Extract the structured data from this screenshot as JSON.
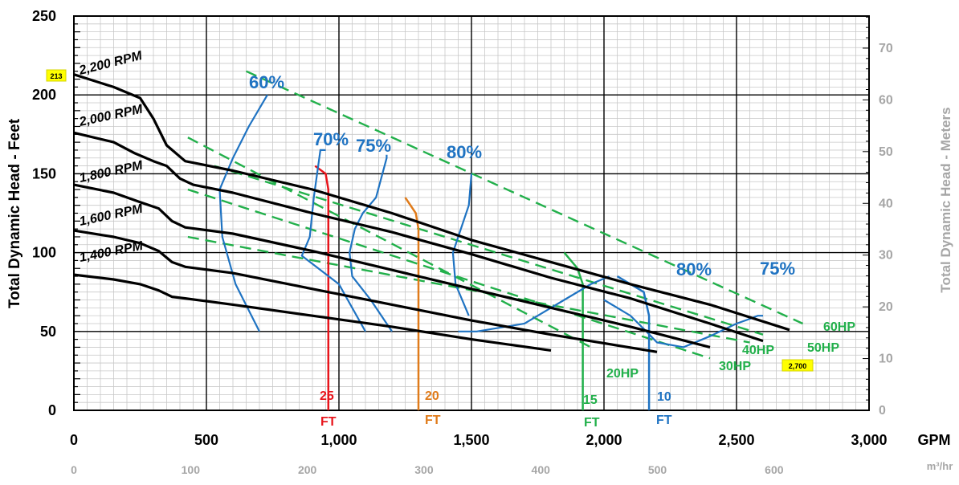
{
  "chart_data": {
    "type": "line",
    "xlabel": "GPM",
    "x2label": "m³/hr",
    "ylabel": "Total Dynamic Head - Feet",
    "y2label": "Total Dynamic Head - Meters",
    "xlim": [
      0,
      3000
    ],
    "ylim": [
      0,
      250
    ],
    "x_ticks": [
      "0",
      "500",
      "1,000",
      "1,500",
      "2,000",
      "2,500",
      "3,000"
    ],
    "y_ticks": [
      "0",
      "50",
      "100",
      "150",
      "200",
      "250"
    ],
    "x2_ticks": [
      "0",
      "100",
      "200",
      "300",
      "400",
      "500",
      "600"
    ],
    "y2_ticks": [
      "0",
      "10",
      "20",
      "30",
      "40",
      "50",
      "60",
      "70"
    ],
    "badges": {
      "shutoff_head": "213",
      "max_flow": "2,700"
    },
    "colors": {
      "rpm": "#000000",
      "efficiency": "#1f73c2",
      "horsepower": "#22b04b",
      "npsh_25": "#e8151c",
      "npsh_20": "#e07b1a",
      "npsh_15": "#22b04b",
      "npsh_10": "#1f73c2",
      "badge": "#ffff00",
      "grid": "#000000"
    },
    "rpm_curves": [
      {
        "name": "2,200 RPM",
        "points": [
          [
            0,
            213
          ],
          [
            150,
            205
          ],
          [
            250,
            198
          ],
          [
            300,
            185
          ],
          [
            350,
            168
          ],
          [
            420,
            158
          ],
          [
            600,
            152
          ],
          [
            900,
            140
          ],
          [
            1200,
            125
          ],
          [
            1500,
            108
          ],
          [
            1800,
            94
          ],
          [
            2100,
            80
          ],
          [
            2400,
            67
          ],
          [
            2700,
            51
          ]
        ]
      },
      {
        "name": "2,000 RPM",
        "points": [
          [
            0,
            176
          ],
          [
            150,
            170
          ],
          [
            230,
            163
          ],
          [
            300,
            158
          ],
          [
            350,
            155
          ],
          [
            400,
            147
          ],
          [
            450,
            143
          ],
          [
            600,
            138
          ],
          [
            900,
            125
          ],
          [
            1200,
            113
          ],
          [
            1500,
            99
          ],
          [
            1800,
            84
          ],
          [
            2100,
            71
          ],
          [
            2400,
            55
          ],
          [
            2600,
            44
          ]
        ]
      },
      {
        "name": "1,800 RPM",
        "points": [
          [
            0,
            143
          ],
          [
            150,
            138
          ],
          [
            250,
            132
          ],
          [
            320,
            128
          ],
          [
            370,
            120
          ],
          [
            420,
            116
          ],
          [
            600,
            112
          ],
          [
            900,
            101
          ],
          [
            1200,
            89
          ],
          [
            1500,
            77
          ],
          [
            1800,
            65
          ],
          [
            2100,
            53
          ],
          [
            2400,
            40
          ]
        ]
      },
      {
        "name": "1,600 RPM",
        "points": [
          [
            0,
            114
          ],
          [
            150,
            110
          ],
          [
            250,
            106
          ],
          [
            320,
            101
          ],
          [
            370,
            94
          ],
          [
            420,
            91
          ],
          [
            600,
            87
          ],
          [
            900,
            77
          ],
          [
            1200,
            67
          ],
          [
            1500,
            57
          ],
          [
            1800,
            48
          ],
          [
            2200,
            37
          ]
        ]
      },
      {
        "name": "1,400 RPM",
        "points": [
          [
            0,
            86
          ],
          [
            150,
            83
          ],
          [
            250,
            80
          ],
          [
            320,
            76
          ],
          [
            370,
            72
          ],
          [
            420,
            71
          ],
          [
            600,
            67
          ],
          [
            900,
            60
          ],
          [
            1200,
            53
          ],
          [
            1500,
            45
          ],
          [
            1800,
            38
          ]
        ]
      }
    ],
    "rpm_labels": [
      "2,200 RPM",
      "2,000 RPM",
      "1,800 RPM",
      "1,600 RPM",
      "1,400 RPM"
    ],
    "hp_lines": [
      {
        "name": "20HP",
        "points": [
          [
            430,
            173
          ],
          [
            1950,
            40
          ]
        ]
      },
      {
        "name": "30HP",
        "points": [
          [
            430,
            140
          ],
          [
            2400,
            33
          ]
        ]
      },
      {
        "name": "40HP",
        "points": [
          [
            430,
            110
          ],
          [
            2550,
            43
          ]
        ]
      },
      {
        "name": "50HP",
        "points": [
          [
            530,
            155
          ],
          [
            2600,
            48
          ]
        ]
      },
      {
        "name": "60HP",
        "points": [
          [
            650,
            215
          ],
          [
            2750,
            55
          ]
        ]
      }
    ],
    "hp_labels": [
      "20HP",
      "30HP",
      "40HP",
      "50HP",
      "60HP"
    ],
    "efficiency_curves": [
      {
        "name": "60%",
        "points": [
          [
            700,
            50
          ],
          [
            610,
            80
          ],
          [
            560,
            110
          ],
          [
            550,
            140
          ],
          [
            600,
            160
          ],
          [
            660,
            180
          ],
          [
            730,
            200
          ]
        ]
      },
      {
        "name": "70%",
        "points": [
          [
            1100,
            50
          ],
          [
            1000,
            80
          ],
          [
            860,
            98
          ],
          [
            890,
            110
          ],
          [
            905,
            135
          ],
          [
            930,
            165
          ],
          [
            950,
            165
          ]
        ]
      },
      {
        "name": "75%",
        "points": [
          [
            1200,
            50
          ],
          [
            1120,
            70
          ],
          [
            1050,
            85
          ],
          [
            1040,
            100
          ],
          [
            1060,
            115
          ],
          [
            1090,
            125
          ],
          [
            1140,
            135
          ],
          [
            1180,
            160
          ],
          [
            1180,
            162
          ]
        ]
      },
      {
        "name": "80%",
        "points": [
          [
            1490,
            60
          ],
          [
            1440,
            80
          ],
          [
            1430,
            100
          ],
          [
            1460,
            115
          ],
          [
            1490,
            130
          ],
          [
            1500,
            150
          ]
        ]
      },
      {
        "name": "80% upper",
        "points": [
          [
            1450,
            50
          ],
          [
            1520,
            50
          ],
          [
            1700,
            55
          ],
          [
            1850,
            70
          ],
          [
            1950,
            80
          ],
          [
            2020,
            85
          ]
        ]
      },
      {
        "name": "75% right",
        "points": [
          [
            2000,
            70
          ],
          [
            2050,
            65
          ],
          [
            2100,
            60
          ],
          [
            2160,
            50
          ],
          [
            2200,
            43
          ],
          [
            2300,
            40
          ],
          [
            2400,
            47
          ],
          [
            2500,
            55
          ],
          [
            2550,
            58
          ],
          [
            2580,
            60
          ],
          [
            2600,
            60
          ]
        ]
      }
    ],
    "efficiency_labels": [
      "60%",
      "70%",
      "75%",
      "80%",
      "80%",
      "75%"
    ],
    "npsh_curves": [
      {
        "name": "25 FT",
        "points": [
          [
            910,
            155
          ],
          [
            950,
            150
          ],
          [
            960,
            140
          ],
          [
            960,
            130
          ],
          [
            960,
            0
          ]
        ]
      },
      {
        "name": "20 FT",
        "points": [
          [
            1250,
            135
          ],
          [
            1290,
            125
          ],
          [
            1300,
            115
          ],
          [
            1300,
            100
          ],
          [
            1300,
            0
          ]
        ]
      },
      {
        "name": "15 FT",
        "points": [
          [
            1850,
            100
          ],
          [
            1900,
            90
          ],
          [
            1920,
            80
          ],
          [
            1920,
            0
          ]
        ]
      },
      {
        "name": "10 FT",
        "points": [
          [
            2050,
            85
          ],
          [
            2150,
            75
          ],
          [
            2170,
            60
          ],
          [
            2170,
            0
          ]
        ]
      }
    ],
    "npsh_labels": [
      "25",
      "20",
      "15",
      "10"
    ],
    "npsh_unit": "FT"
  }
}
